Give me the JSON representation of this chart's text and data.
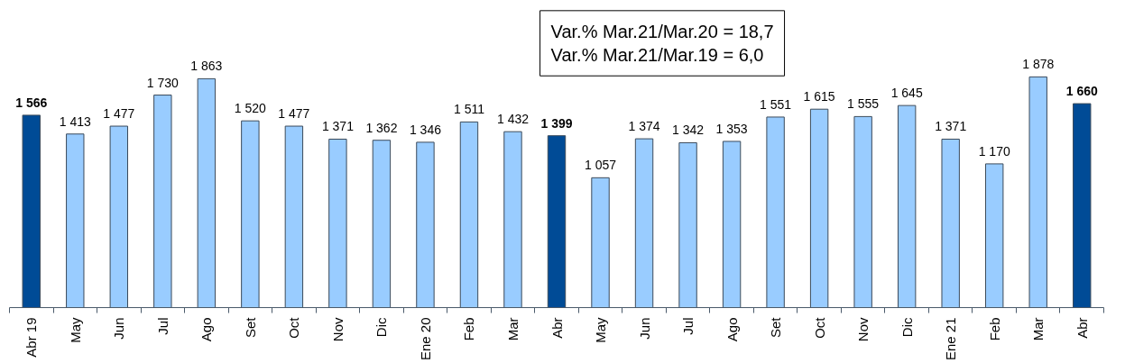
{
  "chart_data": {
    "type": "bar",
    "categories": [
      "Abr 19",
      "May",
      "Jun",
      "Jul",
      "Ago",
      "Set",
      "Oct",
      "Nov",
      "Dic",
      "Ene 20",
      "Feb",
      "Mar",
      "Abr",
      "May",
      "Jun",
      "Jul",
      "Ago",
      "Set",
      "Oct",
      "Nov",
      "Dic",
      "Ene 21",
      "Feb",
      "Mar",
      "Abr"
    ],
    "values": [
      1566,
      1413,
      1477,
      1730,
      1863,
      1520,
      1477,
      1371,
      1362,
      1346,
      1511,
      1432,
      1399,
      1057,
      1374,
      1342,
      1353,
      1551,
      1615,
      1555,
      1645,
      1371,
      1170,
      1878,
      1660
    ],
    "value_labels": [
      "1 566",
      "1 413",
      "1 477",
      "1 730",
      "1 863",
      "1 520",
      "1 477",
      "1 371",
      "1 362",
      "1 346",
      "1 511",
      "1 432",
      "1 399",
      "1 057",
      "1 374",
      "1 342",
      "1 353",
      "1 551",
      "1 615",
      "1 555",
      "1 645",
      "1 371",
      "1 170",
      "1 878",
      "1 660"
    ],
    "colors": [
      "#004b96",
      "#99ccff",
      "#99ccff",
      "#99ccff",
      "#99ccff",
      "#99ccff",
      "#99ccff",
      "#99ccff",
      "#99ccff",
      "#99ccff",
      "#99ccff",
      "#99ccff",
      "#004b96",
      "#99ccff",
      "#99ccff",
      "#99ccff",
      "#99ccff",
      "#99ccff",
      "#99ccff",
      "#99ccff",
      "#99ccff",
      "#99ccff",
      "#99ccff",
      "#99ccff",
      "#004b96"
    ],
    "tick_labels": "x",
    "annotations": [
      "Var.% Mar.21/Mar.20 = 18,7",
      "Var.% Mar.21/Mar.19 = 6,0"
    ]
  }
}
